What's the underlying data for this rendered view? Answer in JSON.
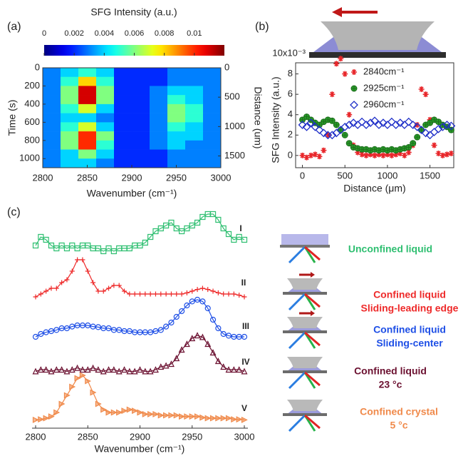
{
  "chart_data": [
    {
      "type": "heatmap",
      "panel": "(a)",
      "colorbar_label": "SFG Intensity (a.u.)",
      "xlabel": "Wavenumber (cm⁻¹)",
      "ylabel": "Time (s)",
      "y2label": "Distance (um)",
      "x": [
        2810,
        2830,
        2850,
        2870,
        2890,
        2910,
        2930,
        2950,
        2970,
        2990
      ],
      "y": [
        50,
        150,
        250,
        350,
        450,
        550,
        650,
        750,
        850,
        950,
        1050
      ],
      "values": [
        [
          0.003,
          0.004,
          0.005,
          0.004,
          0.002,
          0.002,
          0.002,
          0.003,
          0.003,
          0.003
        ],
        [
          0.003,
          0.005,
          0.008,
          0.005,
          0.002,
          0.002,
          0.002,
          0.003,
          0.003,
          0.003
        ],
        [
          0.003,
          0.006,
          0.011,
          0.006,
          0.002,
          0.002,
          0.003,
          0.004,
          0.004,
          0.003
        ],
        [
          0.003,
          0.006,
          0.011,
          0.006,
          0.002,
          0.002,
          0.003,
          0.005,
          0.004,
          0.003
        ],
        [
          0.003,
          0.005,
          0.007,
          0.004,
          0.002,
          0.002,
          0.003,
          0.006,
          0.005,
          0.003
        ],
        [
          0.003,
          0.004,
          0.004,
          0.003,
          0.002,
          0.002,
          0.003,
          0.006,
          0.005,
          0.003
        ],
        [
          0.003,
          0.005,
          0.007,
          0.004,
          0.002,
          0.002,
          0.003,
          0.005,
          0.004,
          0.003
        ],
        [
          0.003,
          0.006,
          0.01,
          0.006,
          0.002,
          0.002,
          0.003,
          0.004,
          0.004,
          0.003
        ],
        [
          0.003,
          0.006,
          0.01,
          0.005,
          0.002,
          0.002,
          0.003,
          0.004,
          0.003,
          0.003
        ],
        [
          0.003,
          0.004,
          0.006,
          0.004,
          0.002,
          0.002,
          0.002,
          0.003,
          0.003,
          0.003
        ],
        [
          0.003,
          0.004,
          0.004,
          0.003,
          0.002,
          0.002,
          0.002,
          0.003,
          0.003,
          0.003
        ]
      ],
      "xlim": [
        2800,
        3000
      ],
      "xticks": [
        2800,
        2850,
        2900,
        2950,
        3000
      ],
      "ylim": [
        0,
        1100
      ],
      "yticks": [
        0,
        200,
        400,
        600,
        800,
        1000
      ],
      "y_reversed": true,
      "y2lim": [
        0,
        1700
      ],
      "y2ticks": [
        0,
        500,
        1000,
        1500
      ],
      "zlim": [
        0,
        0.012
      ],
      "zticks": [
        0,
        0.002,
        0.004,
        0.006,
        0.008,
        0.01
      ],
      "colormap": "jet"
    },
    {
      "type": "scatter",
      "panel": "(b)",
      "xlabel": "Distance (μm)",
      "ylabel": "SFG Intensity (a.u.)",
      "x": [
        0,
        50,
        100,
        150,
        200,
        250,
        300,
        350,
        400,
        450,
        500,
        550,
        600,
        650,
        700,
        750,
        800,
        850,
        900,
        950,
        1000,
        1050,
        1100,
        1150,
        1200,
        1250,
        1300,
        1350,
        1400,
        1450,
        1500,
        1550,
        1600,
        1650,
        1700,
        1750
      ],
      "series": [
        {
          "name": "2840cm⁻¹",
          "color": "#e8262a",
          "marker": "asterisk",
          "values": [
            0,
            -0.2,
            0,
            0.1,
            -0.1,
            0.5,
            2,
            6,
            9,
            9.5,
            8,
            4,
            1,
            0.3,
            0.1,
            0,
            0.1,
            0,
            0.1,
            0,
            0.1,
            0,
            0.1,
            0.2,
            0,
            0.3,
            1,
            3,
            6.5,
            6,
            3.5,
            1,
            0.2,
            0,
            0.1,
            0.2
          ]
        },
        {
          "name": "2925cm⁻¹",
          "color": "#2a9d2a",
          "marker": "circle-plus",
          "values": [
            3.5,
            3.8,
            3.5,
            3.2,
            3,
            3.3,
            3.5,
            3.4,
            3,
            2.5,
            2,
            1.2,
            0.8,
            0.7,
            0.6,
            0.6,
            0.5,
            0.6,
            0.5,
            0.6,
            0.5,
            0.6,
            0.5,
            0.6,
            0.7,
            0.8,
            1.2,
            1.8,
            2.5,
            3,
            3.2,
            3.5,
            3.3,
            3,
            2.8,
            2.5
          ]
        },
        {
          "name": "2960cm⁻¹",
          "color": "#1f2fc8",
          "marker": "diamond",
          "values": [
            3,
            2.8,
            3.2,
            2.8,
            2.5,
            2.2,
            2,
            2,
            2.2,
            2.5,
            2.8,
            3,
            3.2,
            3,
            3.3,
            3,
            3.2,
            3.4,
            3,
            3.2,
            3,
            3.3,
            3,
            3.2,
            3,
            3.3,
            3,
            2.8,
            2.5,
            2.2,
            2,
            2.3,
            2.6,
            2.8,
            3,
            2.9
          ]
        }
      ],
      "xlim": [
        -80,
        1780
      ],
      "xticks": [
        0,
        500,
        1000,
        1500
      ],
      "ylim": [
        -1.2,
        10
      ],
      "yticks": [
        0,
        2,
        4,
        6,
        8,
        {
          "value": 10,
          "label": "10x10⁻³"
        }
      ]
    },
    {
      "type": "line",
      "panel": "(c)",
      "xlabel": "Wavenumber (cm⁻¹)",
      "x": [
        2800,
        2805,
        2810,
        2815,
        2820,
        2825,
        2830,
        2835,
        2840,
        2845,
        2850,
        2855,
        2860,
        2865,
        2870,
        2875,
        2880,
        2885,
        2890,
        2895,
        2900,
        2905,
        2910,
        2915,
        2920,
        2925,
        2930,
        2935,
        2940,
        2945,
        2950,
        2955,
        2960,
        2965,
        2970,
        2975,
        2980,
        2985,
        2990,
        2995,
        3000
      ],
      "xlim": [
        2800,
        3000
      ],
      "xticks": [
        2800,
        2850,
        2900,
        2950,
        3000
      ],
      "series": [
        {
          "label": "I",
          "description": [
            "Unconfined liquid"
          ],
          "color": "#2fbf71",
          "marker": "square",
          "values": [
            0.2,
            0.35,
            0.3,
            0.2,
            0.15,
            0.2,
            0.15,
            0.2,
            0.15,
            0.2,
            0.2,
            0.15,
            0.15,
            0.1,
            0.15,
            0.1,
            0.15,
            0.15,
            0.15,
            0.2,
            0.2,
            0.25,
            0.35,
            0.45,
            0.5,
            0.55,
            0.6,
            0.5,
            0.45,
            0.5,
            0.55,
            0.6,
            0.7,
            0.75,
            0.75,
            0.65,
            0.5,
            0.4,
            0.3,
            0.35,
            0.3
          ]
        },
        {
          "label": "II",
          "description": [
            "Confined liquid",
            "Sliding-leading edge"
          ],
          "color": "#ee2a2a",
          "marker": "plus",
          "values": [
            0.05,
            0.1,
            0.15,
            0.2,
            0.2,
            0.3,
            0.35,
            0.5,
            0.7,
            0.7,
            0.5,
            0.3,
            0.15,
            0.15,
            0.2,
            0.25,
            0.25,
            0.15,
            0.1,
            0.1,
            0.1,
            0.1,
            0.1,
            0.1,
            0.1,
            0.1,
            0.1,
            0.1,
            0.1,
            0.12,
            0.15,
            0.18,
            0.2,
            0.18,
            0.15,
            0.12,
            0.1,
            0.1,
            0.1,
            0.08,
            0.05
          ]
        },
        {
          "label": "III",
          "description": [
            "Confined liquid",
            "Sliding-center"
          ],
          "color": "#1e4fe6",
          "marker": "circle",
          "values": [
            0.1,
            0.15,
            0.18,
            0.2,
            0.22,
            0.25,
            0.25,
            0.28,
            0.3,
            0.3,
            0.3,
            0.28,
            0.27,
            0.25,
            0.25,
            0.22,
            0.22,
            0.2,
            0.2,
            0.18,
            0.18,
            0.18,
            0.18,
            0.2,
            0.22,
            0.28,
            0.35,
            0.45,
            0.55,
            0.65,
            0.72,
            0.75,
            0.72,
            0.6,
            0.4,
            0.25,
            0.15,
            0.12,
            0.1,
            0.1,
            0.1
          ]
        },
        {
          "label": "IV",
          "description": [
            "Confined liquid",
            "23 °c"
          ],
          "color": "#6b1030",
          "marker": "triangle",
          "values": [
            0.12,
            0.15,
            0.15,
            0.12,
            0.15,
            0.15,
            0.12,
            0.15,
            0.18,
            0.15,
            0.15,
            0.18,
            0.15,
            0.12,
            0.15,
            0.15,
            0.12,
            0.15,
            0.12,
            0.12,
            0.15,
            0.12,
            0.12,
            0.15,
            0.2,
            0.22,
            0.25,
            0.35,
            0.5,
            0.6,
            0.7,
            0.75,
            0.72,
            0.6,
            0.45,
            0.3,
            0.2,
            0.15,
            0.15,
            0.15,
            0.12
          ]
        },
        {
          "label": "V",
          "description": [
            "Confined crystal",
            "5 °c"
          ],
          "color": "#f08a4b",
          "marker": "triangle-right",
          "values": [
            0.02,
            0.03,
            0.05,
            0.08,
            0.15,
            0.3,
            0.45,
            0.6,
            0.75,
            0.8,
            0.7,
            0.5,
            0.3,
            0.2,
            0.15,
            0.15,
            0.15,
            0.18,
            0.2,
            0.18,
            0.15,
            0.12,
            0.12,
            0.12,
            0.1,
            0.1,
            0.1,
            0.1,
            0.08,
            0.08,
            0.08,
            0.08,
            0.06,
            0.05,
            0.05,
            0.05,
            0.05,
            0.05,
            0.03,
            0.03,
            0.02
          ]
        }
      ]
    }
  ]
}
